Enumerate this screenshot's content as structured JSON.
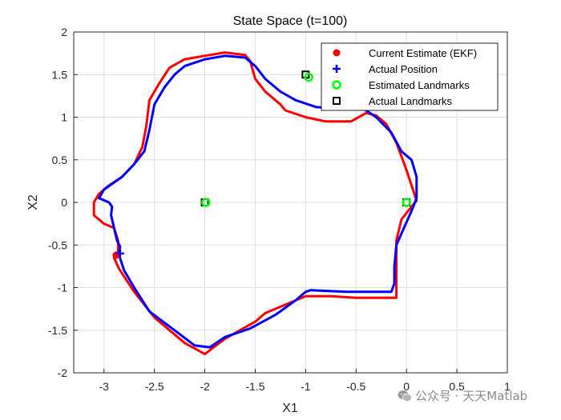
{
  "chart_data": {
    "type": "line",
    "title": "State Space (t=100)",
    "xlabel": "X1",
    "ylabel": "X2",
    "xlim": [
      -3.3,
      1.0
    ],
    "ylim": [
      -2.0,
      2.0
    ],
    "xticks": [
      -3,
      -2.5,
      -2,
      -1.5,
      -1,
      -0.5,
      0,
      0.5,
      1
    ],
    "yticks": [
      -2,
      -1.5,
      -1,
      -0.5,
      0,
      0.5,
      1,
      1.5,
      2
    ],
    "grid": true,
    "legend_position": "top-right",
    "legend": [
      {
        "label": "Current Estimate (EKF)",
        "marker": "filled-circle",
        "color": "#ff0000"
      },
      {
        "label": "Actual Position",
        "marker": "plus",
        "color": "#0000ff"
      },
      {
        "label": "Estimated Landmarks",
        "marker": "open-circle",
        "color": "#00ff00"
      },
      {
        "label": "Actual Landmarks",
        "marker": "open-square",
        "color": "#000000"
      }
    ],
    "series": [
      {
        "color": "#ff0000",
        "points": [
          [
            -2.88,
            -0.62
          ],
          [
            -2.86,
            -0.57
          ],
          [
            -2.86,
            -0.45
          ],
          [
            -2.9,
            -0.3
          ],
          [
            -3.0,
            -0.25
          ],
          [
            -3.1,
            -0.15
          ],
          [
            -3.1,
            0.0
          ],
          [
            -3.05,
            0.1
          ],
          [
            -2.95,
            0.2
          ],
          [
            -2.82,
            0.3
          ],
          [
            -2.7,
            0.45
          ],
          [
            -2.62,
            0.65
          ],
          [
            -2.58,
            0.9
          ],
          [
            -2.55,
            1.2
          ],
          [
            -2.45,
            1.4
          ],
          [
            -2.35,
            1.58
          ],
          [
            -2.2,
            1.68
          ],
          [
            -2.0,
            1.72
          ],
          [
            -1.8,
            1.76
          ],
          [
            -1.6,
            1.73
          ],
          [
            -1.55,
            1.66
          ],
          [
            -1.5,
            1.45
          ],
          [
            -1.4,
            1.3
          ],
          [
            -1.3,
            1.2
          ],
          [
            -1.25,
            1.15
          ],
          [
            -1.2,
            1.08
          ],
          [
            -1.0,
            1.0
          ],
          [
            -0.8,
            0.95
          ],
          [
            -0.55,
            0.95
          ],
          [
            -0.4,
            1.05
          ],
          [
            -0.3,
            1.02
          ],
          [
            -0.2,
            0.92
          ],
          [
            -0.1,
            0.7
          ],
          [
            0.0,
            0.38
          ],
          [
            0.05,
            0.2
          ],
          [
            0.1,
            0.02
          ],
          [
            0.05,
            -0.05
          ],
          [
            -0.05,
            -0.2
          ],
          [
            -0.1,
            -0.45
          ],
          [
            -0.1,
            -0.7
          ],
          [
            -0.1,
            -0.95
          ],
          [
            -0.1,
            -1.12
          ],
          [
            -0.2,
            -1.12
          ],
          [
            -0.5,
            -1.12
          ],
          [
            -0.75,
            -1.1
          ],
          [
            -1.0,
            -1.1
          ],
          [
            -1.4,
            -1.3
          ],
          [
            -1.5,
            -1.4
          ],
          [
            -1.8,
            -1.6
          ],
          [
            -2.0,
            -1.78
          ],
          [
            -2.2,
            -1.65
          ],
          [
            -2.5,
            -1.35
          ],
          [
            -2.7,
            -1.05
          ],
          [
            -2.8,
            -0.87
          ],
          [
            -2.85,
            -0.78
          ],
          [
            -2.9,
            -0.65
          ]
        ]
      },
      {
        "color": "#0000ff",
        "points": [
          [
            -2.85,
            -0.6
          ],
          [
            -2.84,
            -0.52
          ],
          [
            -2.87,
            -0.45
          ],
          [
            -2.9,
            -0.3
          ],
          [
            -2.93,
            -0.15
          ],
          [
            -2.92,
            -0.05
          ],
          [
            -2.95,
            0.0
          ],
          [
            -3.05,
            0.05
          ],
          [
            -3.0,
            0.15
          ],
          [
            -2.82,
            0.3
          ],
          [
            -2.7,
            0.45
          ],
          [
            -2.6,
            0.6
          ],
          [
            -2.55,
            0.85
          ],
          [
            -2.5,
            1.15
          ],
          [
            -2.4,
            1.35
          ],
          [
            -2.3,
            1.5
          ],
          [
            -2.2,
            1.6
          ],
          [
            -2.0,
            1.68
          ],
          [
            -1.8,
            1.72
          ],
          [
            -1.6,
            1.7
          ],
          [
            -1.5,
            1.6
          ],
          [
            -1.4,
            1.45
          ],
          [
            -1.25,
            1.3
          ],
          [
            -1.1,
            1.2
          ],
          [
            -0.9,
            1.12
          ],
          [
            -0.7,
            1.1
          ],
          [
            -0.5,
            1.12
          ],
          [
            -0.4,
            1.08
          ],
          [
            -0.3,
            1.0
          ],
          [
            -0.15,
            0.82
          ],
          [
            -0.05,
            0.6
          ],
          [
            0.05,
            0.5
          ],
          [
            0.1,
            0.3
          ],
          [
            0.1,
            0.05
          ],
          [
            0.05,
            -0.1
          ],
          [
            -0.1,
            -0.5
          ],
          [
            -0.12,
            -0.75
          ],
          [
            -0.12,
            -0.95
          ],
          [
            -0.15,
            -1.05
          ],
          [
            -0.3,
            -1.05
          ],
          [
            -0.6,
            -1.05
          ],
          [
            -0.95,
            -1.03
          ],
          [
            -1.0,
            -1.05
          ],
          [
            -1.1,
            -1.15
          ],
          [
            -1.3,
            -1.32
          ],
          [
            -1.55,
            -1.48
          ],
          [
            -1.8,
            -1.58
          ],
          [
            -1.95,
            -1.7
          ],
          [
            -2.1,
            -1.68
          ],
          [
            -2.3,
            -1.5
          ],
          [
            -2.55,
            -1.28
          ],
          [
            -2.7,
            -1.0
          ],
          [
            -2.8,
            -0.8
          ],
          [
            -2.85,
            -0.62
          ]
        ]
      }
    ],
    "current_estimate": {
      "x": -2.88,
      "y": -0.62
    },
    "actual_position": {
      "x": -2.84,
      "y": -0.6
    },
    "estimated_landmarks": [
      [
        -1.99,
        0.0
      ],
      [
        -0.97,
        1.47
      ],
      [
        0.0,
        0.0
      ]
    ],
    "actual_landmarks": [
      [
        -2.0,
        0.0
      ],
      [
        -1.0,
        1.5
      ],
      [
        0.0,
        0.0
      ]
    ]
  },
  "watermark": {
    "text": "公众号 · 天天Matlab",
    "icon": "wechat-bubble-icon"
  }
}
